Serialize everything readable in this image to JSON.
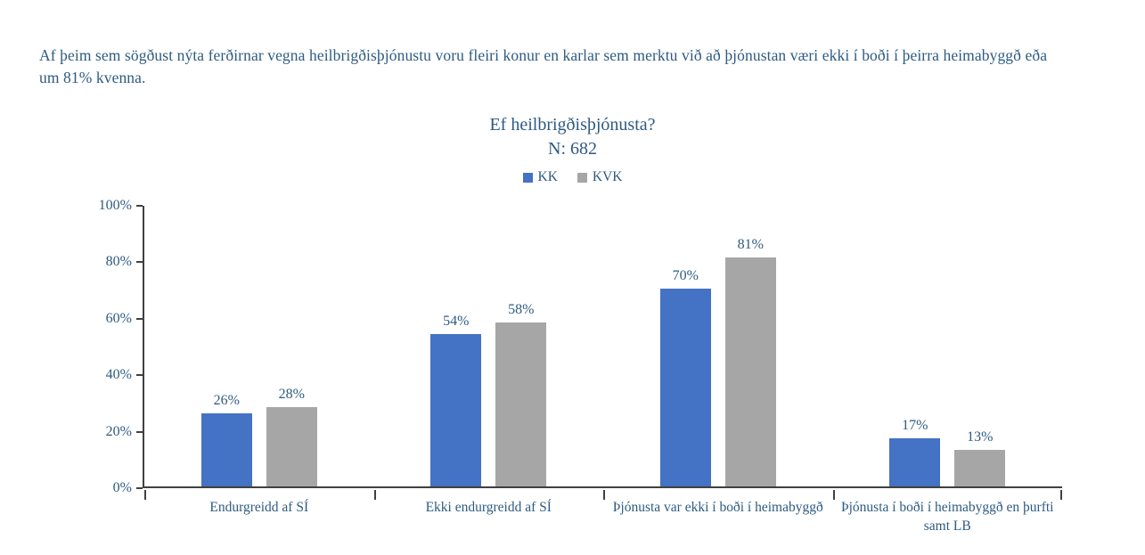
{
  "page": {
    "intro_text": "Af þeim sem sögðust nýta ferðirnar vegna heilbrigðisþjónustu voru fleiri konur en karlar sem merktu við að þjónustan væri ekki í boði í þeirra heimabyggð eða um 81% kvenna."
  },
  "chart_data": {
    "type": "bar",
    "title": "Ef heilbrigðisþjónusta?",
    "subtitle": "N: 682",
    "categories": [
      "Endurgreidd af SÍ",
      "Ekki endurgreidd af SÍ",
      "Þjónusta var ekki í boði í heimabyggð",
      "Þjónusta í boði í heimabyggð en þurfti samt LB"
    ],
    "series": [
      {
        "name": "KK",
        "color": "#4472C4",
        "values": [
          26,
          54,
          70,
          17
        ]
      },
      {
        "name": "KVK",
        "color": "#A6A6A6",
        "values": [
          28,
          58,
          81,
          13
        ]
      }
    ],
    "value_suffix": "%",
    "xlabel": "",
    "ylabel": "",
    "ylim": [
      0,
      100
    ],
    "ytick_step": 20,
    "grid": false,
    "legend_position": "top"
  },
  "colors": {
    "text": "#2E5B80",
    "axis": "#404040",
    "kk_blue": "#4472C4",
    "kvk_gray": "#A6A6A6",
    "background": "#FFFFFF"
  }
}
